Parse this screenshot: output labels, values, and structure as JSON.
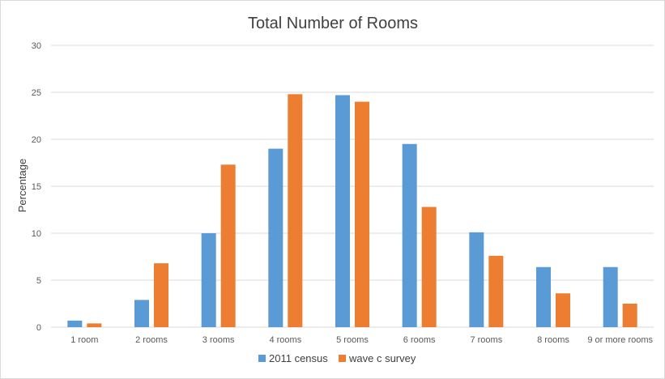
{
  "chart_data": {
    "type": "bar",
    "title": "Total Number of Rooms",
    "xlabel": "",
    "ylabel": "Percentage",
    "ylim": [
      0,
      30
    ],
    "yticks": [
      0,
      5,
      10,
      15,
      20,
      25,
      30
    ],
    "grid": true,
    "legend_position": "bottom",
    "categories": [
      "1 room",
      "2 rooms",
      "3 rooms",
      "4 rooms",
      "5 rooms",
      "6 rooms",
      "7 rooms",
      "8 rooms",
      "9 or more rooms"
    ],
    "series": [
      {
        "name": "2011 census",
        "color": "#5b9bd5",
        "values": [
          0.7,
          2.9,
          10.0,
          19.0,
          24.7,
          19.5,
          10.1,
          6.4,
          6.4
        ]
      },
      {
        "name": "wave c survey",
        "color": "#ed7d31",
        "values": [
          0.4,
          6.8,
          17.3,
          24.8,
          24.0,
          12.8,
          7.6,
          3.6,
          2.5
        ]
      }
    ]
  }
}
